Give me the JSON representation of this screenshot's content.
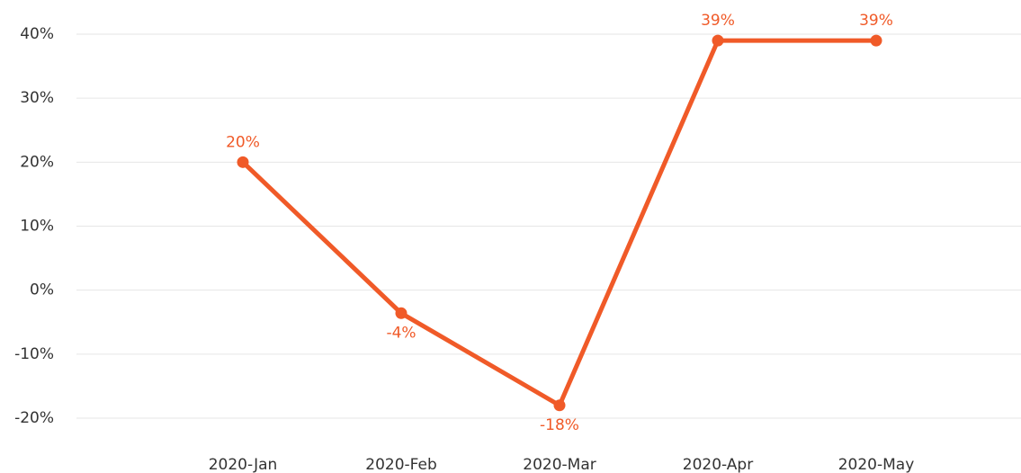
{
  "chart_data": {
    "type": "line",
    "categories": [
      "2020-Jan",
      "2020-Feb",
      "2020-Mar",
      "2020-Apr",
      "2020-May"
    ],
    "series": [
      {
        "color": "#f05a28",
        "values": [
          20,
          -3.6,
          -18,
          39,
          39
        ],
        "value_labels": [
          "20%",
          "-4%",
          "-18%",
          "39%",
          "39%"
        ]
      }
    ],
    "ylim": [
      -20,
      40
    ],
    "yticks": [
      {
        "value": -20,
        "label": "-20%"
      },
      {
        "value": -10,
        "label": "-10%"
      },
      {
        "value": 0,
        "label": "0%"
      },
      {
        "value": 10,
        "label": "10%"
      },
      {
        "value": 20,
        "label": "20%"
      },
      {
        "value": 30,
        "label": "30%"
      },
      {
        "value": 40,
        "label": "40%"
      }
    ],
    "grid": true
  }
}
